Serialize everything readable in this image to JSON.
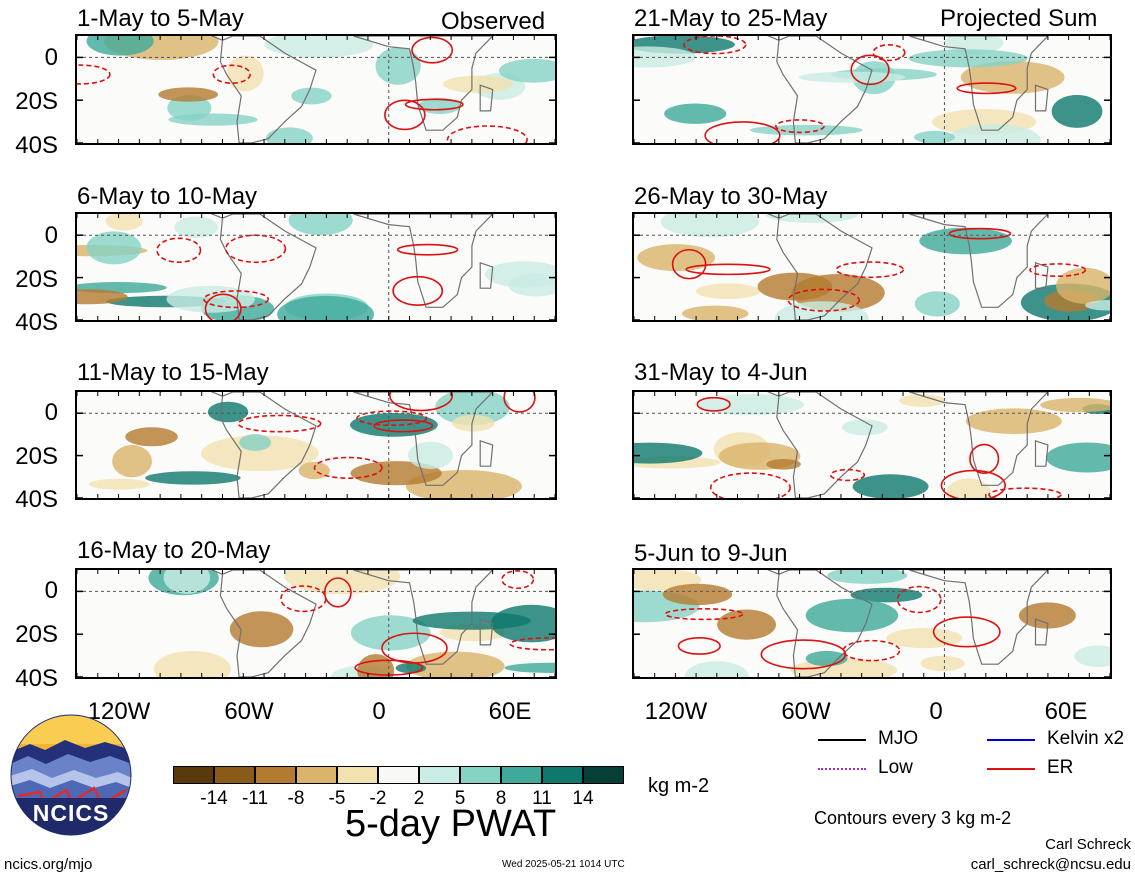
{
  "panels": [
    {
      "title": "1-May to 5-May",
      "label": "Observed"
    },
    {
      "title": "21-May to 25-May",
      "label": "Projected Sum"
    },
    {
      "title": "6-May to 10-May",
      "label": ""
    },
    {
      "title": "26-May to 30-May",
      "label": ""
    },
    {
      "title": "11-May to 15-May",
      "label": ""
    },
    {
      "title": "31-May to 4-Jun",
      "label": ""
    },
    {
      "title": "16-May to 20-May",
      "label": ""
    },
    {
      "title": "5-Jun to 9-Jun",
      "label": ""
    }
  ],
  "map_axes": {
    "lat_labels": [
      "0",
      "20S",
      "40S"
    ],
    "lon_labels": [
      "120W",
      "60W",
      "0",
      "60E"
    ],
    "lat_values": [
      0,
      -20,
      -40
    ],
    "lon_values": [
      -120,
      -60,
      0,
      60
    ],
    "lat_range": [
      10,
      -40
    ],
    "lon_range": [
      -150,
      80
    ]
  },
  "colorbar": {
    "tick_labels": [
      "-14",
      "-11",
      "-8",
      "-5",
      "-2",
      "2",
      "5",
      "8",
      "11",
      "14"
    ],
    "colors": [
      "#5a3a0c",
      "#8a5a18",
      "#b47a30",
      "#d9b46a",
      "#f2e2b0",
      "#f8f8f6",
      "#c9ece4",
      "#86d2c4",
      "#3fa99a",
      "#0e786d",
      "#053f37"
    ],
    "units": "kg m-2",
    "title": "5-day PWAT"
  },
  "legend": {
    "items": [
      {
        "label": "MJO",
        "color": "#000000",
        "style": "solid"
      },
      {
        "label": "Kelvin x2",
        "color": "#0000cc",
        "style": "solid"
      },
      {
        "label": "Low",
        "color": "#9933cc",
        "style": "dotted"
      },
      {
        "label": "ER",
        "color": "#dd1111",
        "style": "solid"
      }
    ],
    "contour_note": "Contours every 3 kg m-2"
  },
  "logo": {
    "text": "NCICS"
  },
  "footer": {
    "url": "ncics.org/mjo",
    "timestamp": "Wed 2025-05-21 1014 UTC",
    "author": "Carl Schreck",
    "email": "carl_schreck@ncsu.edu"
  }
}
